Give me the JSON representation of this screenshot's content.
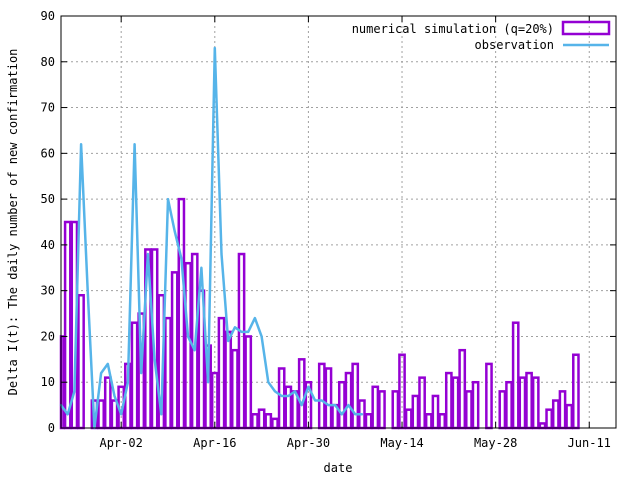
{
  "chart_data": {
    "type": "bar",
    "xlabel": "date",
    "ylabel": "Delta I(t): The daily number of new confirmation",
    "ylim": [
      0,
      90
    ],
    "y_ticks": [
      0,
      10,
      20,
      30,
      40,
      50,
      60,
      70,
      80,
      90
    ],
    "xlim": [
      "2020-03-24",
      "2020-06-15"
    ],
    "x_ticks": [
      {
        "date": "2020-04-02",
        "label": "Apr-02"
      },
      {
        "date": "2020-04-16",
        "label": "Apr-16"
      },
      {
        "date": "2020-04-30",
        "label": "Apr-30"
      },
      {
        "date": "2020-05-14",
        "label": "May-14"
      },
      {
        "date": "2020-05-28",
        "label": "May-28"
      },
      {
        "date": "2020-06-11",
        "label": "Jun-11"
      }
    ],
    "grid": true,
    "legend_position": "top-right",
    "series": [
      {
        "name": "numerical simulation (q=20%)",
        "kind": "bar",
        "color": "#9400d3",
        "start_date": "2020-03-24",
        "values": [
          20,
          45,
          45,
          29,
          0,
          6,
          6,
          11,
          6,
          9,
          14,
          23,
          25,
          39,
          39,
          29,
          24,
          34,
          50,
          36,
          38,
          30,
          18,
          12,
          24,
          21,
          17,
          38,
          20,
          3,
          4,
          3,
          2,
          13,
          9,
          8,
          15,
          10,
          0,
          14,
          13,
          5,
          10,
          12,
          14,
          6,
          3,
          9,
          8,
          0,
          8,
          16,
          4,
          7,
          11,
          3,
          7,
          3,
          12,
          11,
          17,
          8,
          10,
          0,
          14,
          0,
          8,
          10,
          23,
          11,
          12,
          11,
          1,
          4,
          6,
          8,
          5,
          16
        ]
      },
      {
        "name": "observation",
        "kind": "line",
        "color": "#56b4e9",
        "points": [
          [
            "2020-03-24",
            5
          ],
          [
            "2020-03-25",
            3
          ],
          [
            "2020-03-26",
            8
          ],
          [
            "2020-03-27",
            62
          ],
          [
            "2020-03-28",
            30
          ],
          [
            "2020-03-29",
            0
          ],
          [
            "2020-03-30",
            12
          ],
          [
            "2020-03-31",
            14
          ],
          [
            "2020-04-01",
            7
          ],
          [
            "2020-04-02",
            3
          ],
          [
            "2020-04-03",
            10
          ],
          [
            "2020-04-04",
            62
          ],
          [
            "2020-04-05",
            12
          ],
          [
            "2020-04-06",
            38
          ],
          [
            "2020-04-07",
            15
          ],
          [
            "2020-04-08",
            3
          ],
          [
            "2020-04-09",
            50
          ],
          [
            "2020-04-10",
            43
          ],
          [
            "2020-04-11",
            37
          ],
          [
            "2020-04-12",
            20
          ],
          [
            "2020-04-13",
            17
          ],
          [
            "2020-04-14",
            35
          ],
          [
            "2020-04-15",
            10
          ],
          [
            "2020-04-16",
            83
          ],
          [
            "2020-04-17",
            38
          ],
          [
            "2020-04-18",
            19
          ],
          [
            "2020-04-19",
            22
          ],
          [
            "2020-04-20",
            21
          ],
          [
            "2020-04-21",
            21
          ],
          [
            "2020-04-22",
            24
          ],
          [
            "2020-04-23",
            20
          ],
          [
            "2020-04-24",
            10
          ],
          [
            "2020-04-25",
            8
          ],
          [
            "2020-04-26",
            7
          ],
          [
            "2020-04-27",
            7
          ],
          [
            "2020-04-28",
            8
          ],
          [
            "2020-04-29",
            5
          ],
          [
            "2020-04-30",
            9
          ],
          [
            "2020-05-01",
            6
          ],
          [
            "2020-05-02",
            6
          ],
          [
            "2020-05-03",
            5
          ],
          [
            "2020-05-04",
            5
          ],
          [
            "2020-05-05",
            3
          ],
          [
            "2020-05-06",
            5
          ],
          [
            "2020-05-07",
            3
          ],
          [
            "2020-05-08",
            3
          ]
        ]
      }
    ]
  }
}
